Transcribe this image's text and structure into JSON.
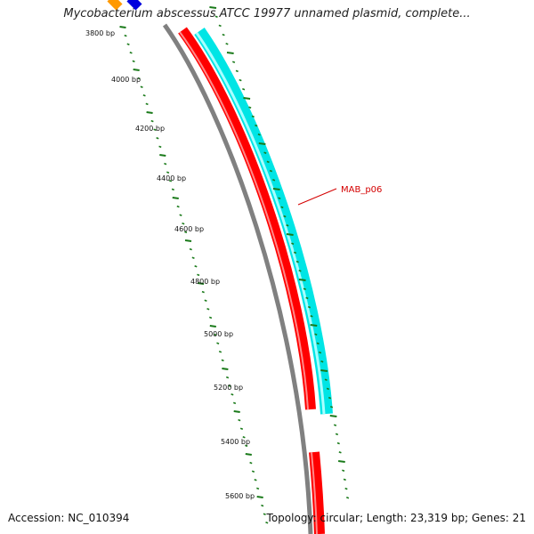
{
  "header": {
    "title": "Mycobacterium abscessus ATCC 19977 unnamed plasmid, complete..."
  },
  "footer": {
    "accession": "Accession: NC_010394",
    "summary": "Topology: circular; Length: 23,319 bp; Genes: 21"
  },
  "ticks": [
    {
      "label": "3800 bp"
    },
    {
      "label": "4000 bp"
    },
    {
      "label": "4200 bp"
    },
    {
      "label": "4400 bp"
    },
    {
      "label": "4600 bp"
    },
    {
      "label": "4800 bp"
    },
    {
      "label": "5000 bp"
    },
    {
      "label": "5200 bp"
    },
    {
      "label": "5400 bp"
    },
    {
      "label": "5600 bp"
    }
  ],
  "features": [
    {
      "label": "MAB_p06"
    }
  ],
  "colors": {
    "backbone": "#808080",
    "cds_forward": "#00e5e5",
    "cds_reverse": "#ff0000",
    "ticks": "#1a7a1a",
    "label": "#d40000"
  }
}
